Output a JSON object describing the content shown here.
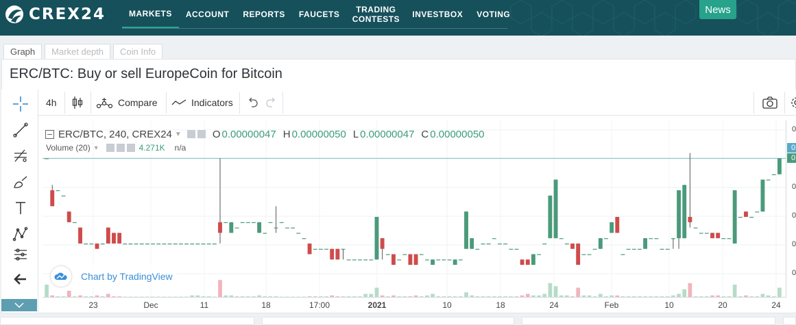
{
  "header": {
    "logo_text": "CREX24",
    "nav": [
      {
        "label": "MARKETS"
      },
      {
        "label": "ACCOUNT"
      },
      {
        "label": "REPORTS"
      },
      {
        "label": "FAUCETS"
      },
      {
        "label": "TRADING CONTESTS"
      },
      {
        "label": "INVESTBOX"
      },
      {
        "label": "VOTING"
      }
    ],
    "news_label": "News",
    "bg_color": "#16505b",
    "accent_color": "#27a28b"
  },
  "tabs": [
    {
      "label": "Graph"
    },
    {
      "label": "Market depth"
    },
    {
      "label": "Coin Info"
    }
  ],
  "page_title": "ERC/BTC: Buy or sell EuropeCoin for Bitcoin",
  "toolbar": {
    "interval": "4h",
    "compare_label": "Compare",
    "indicators_label": "Indicators"
  },
  "legend": {
    "symbol": "ERC/BTC, 240, CREX24",
    "open_key": "O",
    "open": "0.00000047",
    "high_key": "H",
    "high": "0.00000050",
    "low_key": "L",
    "low": "0.00000047",
    "close_key": "C",
    "close": "0.00000050",
    "volume_label": "Volume (20)",
    "volume_value": "4.271K",
    "volume_ma": "n/a"
  },
  "watermark": "Chart by TradingView",
  "x_ticks": [
    {
      "label": "23"
    },
    {
      "label": "Dec"
    },
    {
      "label": "11"
    },
    {
      "label": "18"
    },
    {
      "label": "17:00"
    },
    {
      "label": "2021",
      "bold": true
    },
    {
      "label": "10"
    },
    {
      "label": "18"
    },
    {
      "label": "24"
    },
    {
      "label": "Feb"
    },
    {
      "label": "10"
    },
    {
      "label": "20"
    },
    {
      "label": "24"
    }
  ],
  "y_ticks": [
    "0",
    "0",
    "0",
    "0",
    "0",
    "0",
    "0"
  ],
  "y_badges": [
    "0",
    "0"
  ],
  "chart_data": {
    "type": "candlestick",
    "title": "ERC/BTC, 240, CREX24",
    "up_color": "#4a9a7b",
    "down_color": "#cf4b4b",
    "volume_up_color": "#b5dcc7",
    "volume_down_color": "#f1b4bd",
    "candles": [
      {
        "o": 5e-07,
        "h": 5e-07,
        "l": 5e-07,
        "c": 5e-07,
        "v": 0.4
      },
      {
        "o": 4.4e-07,
        "h": 4.5e-07,
        "l": 4.1e-07,
        "c": 4.1e-07,
        "v": 0.05
      },
      {
        "o": 4.4e-07,
        "h": 4.4e-07,
        "l": 4.4e-07,
        "c": 4.4e-07,
        "v": 0.02
      },
      {
        "o": 4.3e-07,
        "h": 4.3e-07,
        "l": 4.3e-07,
        "c": 4.3e-07,
        "v": 0.02
      },
      {
        "o": 4e-07,
        "h": 4e-07,
        "l": 3.8e-07,
        "c": 3.8e-07,
        "v": 0.2
      },
      {
        "o": 3.8e-07,
        "h": 3.8e-07,
        "l": 3.8e-07,
        "c": 3.8e-07,
        "v": 0.02
      },
      {
        "o": 3.7e-07,
        "h": 3.7e-07,
        "l": 3.4e-07,
        "c": 3.4e-07,
        "v": 0.05
      },
      {
        "o": 3.4e-07,
        "h": 3.4e-07,
        "l": 3.4e-07,
        "c": 3.4e-07,
        "v": 0.02
      },
      {
        "o": 3.4e-07,
        "h": 3.4e-07,
        "l": 3.4e-07,
        "c": 3.4e-07,
        "v": 0.02
      },
      {
        "o": 3.4e-07,
        "h": 3.4e-07,
        "l": 3.3e-07,
        "c": 3.3e-07,
        "v": 0.05
      },
      {
        "o": 3.4e-07,
        "h": 3.4e-07,
        "l": 3.4e-07,
        "c": 3.4e-07,
        "v": 0.02
      },
      {
        "o": 3.7e-07,
        "h": 3.7e-07,
        "l": 3.4e-07,
        "c": 3.4e-07,
        "v": 0.1
      },
      {
        "o": 3.6e-07,
        "h": 3.6e-07,
        "l": 3.4e-07,
        "c": 3.4e-07,
        "v": 0.02
      },
      {
        "o": 3.6e-07,
        "h": 3.6e-07,
        "l": 3.4e-07,
        "c": 3.4e-07,
        "v": 0.02
      },
      {
        "o": 3.4e-07,
        "h": 3.4e-07,
        "l": 3.4e-07,
        "c": 3.4e-07,
        "v": 0.01
      },
      {
        "o": 3.4e-07,
        "h": 3.4e-07,
        "l": 3.4e-07,
        "c": 3.4e-07,
        "v": 0.01
      },
      {
        "o": 3.4e-07,
        "h": 3.4e-07,
        "l": 3.4e-07,
        "c": 3.4e-07,
        "v": 0.01
      },
      {
        "o": 3.4e-07,
        "h": 3.4e-07,
        "l": 3.4e-07,
        "c": 3.4e-07,
        "v": 0.01
      },
      {
        "o": 3.4e-07,
        "h": 3.4e-07,
        "l": 3.4e-07,
        "c": 3.4e-07,
        "v": 0.01
      },
      {
        "o": 3.4e-07,
        "h": 3.4e-07,
        "l": 3.4e-07,
        "c": 3.4e-07,
        "v": 0.01
      },
      {
        "o": 3.4e-07,
        "h": 3.4e-07,
        "l": 3.4e-07,
        "c": 3.4e-07,
        "v": 0.01
      },
      {
        "o": 3.4e-07,
        "h": 3.4e-07,
        "l": 3.4e-07,
        "c": 3.4e-07,
        "v": 0.01
      },
      {
        "o": 3.4e-07,
        "h": 3.4e-07,
        "l": 3.4e-07,
        "c": 3.4e-07,
        "v": 0.01
      },
      {
        "o": 3.4e-07,
        "h": 3.4e-07,
        "l": 3.4e-07,
        "c": 3.4e-07,
        "v": 0.01
      },
      {
        "o": 3.4e-07,
        "h": 3.4e-07,
        "l": 3.4e-07,
        "c": 3.4e-07,
        "v": 0.01
      },
      {
        "o": 3.4e-07,
        "h": 3.4e-07,
        "l": 3.4e-07,
        "c": 3.4e-07,
        "v": 0.01
      },
      {
        "o": 3.4e-07,
        "h": 3.4e-07,
        "l": 3.4e-07,
        "c": 3.4e-07,
        "v": 0.05
      },
      {
        "o": 3.4e-07,
        "h": 3.4e-07,
        "l": 3.4e-07,
        "c": 3.4e-07,
        "v": 0.05
      },
      {
        "o": 3.4e-07,
        "h": 3.4e-07,
        "l": 3.4e-07,
        "c": 3.4e-07,
        "v": 0.02
      },
      {
        "o": 3.4e-07,
        "h": 3.4e-07,
        "l": 3.4e-07,
        "c": 3.4e-07,
        "v": 0.02
      },
      {
        "o": 3.4e-07,
        "h": 3.4e-07,
        "l": 3.4e-07,
        "c": 3.4e-07,
        "v": 0.01
      },
      {
        "o": 3.8e-07,
        "h": 5e-07,
        "l": 3.4e-07,
        "c": 3.6e-07,
        "v": 0.55
      },
      {
        "o": 3.8e-07,
        "h": 3.8e-07,
        "l": 3.8e-07,
        "c": 3.8e-07,
        "v": 0.05
      },
      {
        "o": 3.6e-07,
        "h": 3.8e-07,
        "l": 3.6e-07,
        "c": 3.8e-07,
        "v": 0.05
      },
      {
        "o": 3.7e-07,
        "h": 3.7e-07,
        "l": 3.7e-07,
        "c": 3.7e-07,
        "v": 0.02
      },
      {
        "o": 3.8e-07,
        "h": 3.8e-07,
        "l": 3.8e-07,
        "c": 3.8e-07,
        "v": 0.02
      },
      {
        "o": 3.8e-07,
        "h": 3.8e-07,
        "l": 3.8e-07,
        "c": 3.8e-07,
        "v": 0.02
      },
      {
        "o": 3.8e-07,
        "h": 3.8e-07,
        "l": 3.8e-07,
        "c": 3.8e-07,
        "v": 0.02
      },
      {
        "o": 3.6e-07,
        "h": 3.8e-07,
        "l": 3.6e-07,
        "c": 3.8e-07,
        "v": 0.05
      },
      {
        "o": 3.6e-07,
        "h": 3.6e-07,
        "l": 3.6e-07,
        "c": 3.6e-07,
        "v": 0.02
      },
      {
        "o": 3.8e-07,
        "h": 3.8e-07,
        "l": 3.8e-07,
        "c": 3.8e-07,
        "v": 0.02
      },
      {
        "o": 3.7e-07,
        "h": 4.1e-07,
        "l": 3.6e-07,
        "c": 3.7e-07,
        "v": 0.02
      },
      {
        "o": 3.8e-07,
        "h": 3.8e-07,
        "l": 3.8e-07,
        "c": 3.8e-07,
        "v": 0.01
      },
      {
        "o": 3.7e-07,
        "h": 3.7e-07,
        "l": 3.7e-07,
        "c": 3.7e-07,
        "v": 0.01
      },
      {
        "o": 3.7e-07,
        "h": 3.7e-07,
        "l": 3.7e-07,
        "c": 3.7e-07,
        "v": 0.01
      },
      {
        "o": 3.6e-07,
        "h": 3.6e-07,
        "l": 3.6e-07,
        "c": 3.6e-07,
        "v": 0.01
      },
      {
        "o": 3.5e-07,
        "h": 3.5e-07,
        "l": 3.5e-07,
        "c": 3.5e-07,
        "v": 0.01
      },
      {
        "o": 3.4e-07,
        "h": 3.4e-07,
        "l": 3.2e-07,
        "c": 3.2e-07,
        "v": 0.02
      },
      {
        "o": 3.3e-07,
        "h": 3.3e-07,
        "l": 3.3e-07,
        "c": 3.3e-07,
        "v": 0.02
      },
      {
        "o": 3.3e-07,
        "h": 3.3e-07,
        "l": 3.3e-07,
        "c": 3.3e-07,
        "v": 0.02
      },
      {
        "o": 3.3e-07,
        "h": 3.3e-07,
        "l": 3.3e-07,
        "c": 3.3e-07,
        "v": 0.02
      },
      {
        "o": 3.3e-07,
        "h": 3.3e-07,
        "l": 3.1e-07,
        "c": 3.1e-07,
        "v": 0.05
      },
      {
        "o": 3.3e-07,
        "h": 3.3e-07,
        "l": 3.1e-07,
        "c": 3.1e-07,
        "v": 0.02
      },
      {
        "o": 3.3e-07,
        "h": 3.3e-07,
        "l": 3.1e-07,
        "c": 3.3e-07,
        "v": 0.02
      },
      {
        "o": 3.1e-07,
        "h": 3.1e-07,
        "l": 3.1e-07,
        "c": 3.1e-07,
        "v": 0.02
      },
      {
        "o": 3.1e-07,
        "h": 3.1e-07,
        "l": 3.1e-07,
        "c": 3.1e-07,
        "v": 0.02
      },
      {
        "o": 3.1e-07,
        "h": 3.1e-07,
        "l": 3.1e-07,
        "c": 3.1e-07,
        "v": 0.02
      },
      {
        "o": 3.1e-07,
        "h": 3.1e-07,
        "l": 3.1e-07,
        "c": 3.1e-07,
        "v": 0.1
      },
      {
        "o": 3.1e-07,
        "h": 3.1e-07,
        "l": 3.1e-07,
        "c": 3.1e-07,
        "v": 0.1
      },
      {
        "o": 3.1e-07,
        "h": 3.9e-07,
        "l": 3.1e-07,
        "c": 3.9e-07,
        "v": 0.3
      },
      {
        "o": 3.5e-07,
        "h": 3.5e-07,
        "l": 3.1e-07,
        "c": 3.3e-07,
        "v": 0.05
      },
      {
        "o": 3.2e-07,
        "h": 3.2e-07,
        "l": 3.2e-07,
        "c": 3.2e-07,
        "v": 0.02
      },
      {
        "o": 3.2e-07,
        "h": 3.2e-07,
        "l": 3e-07,
        "c": 3e-07,
        "v": 0.05
      },
      {
        "o": 3.1e-07,
        "h": 3.1e-07,
        "l": 3.1e-07,
        "c": 3.1e-07,
        "v": 0.02
      },
      {
        "o": 3.2e-07,
        "h": 3.2e-07,
        "l": 3.2e-07,
        "c": 3.2e-07,
        "v": 0.02
      },
      {
        "o": 3.2e-07,
        "h": 3.2e-07,
        "l": 3e-07,
        "c": 3e-07,
        "v": 0.02
      },
      {
        "o": 3.2e-07,
        "h": 3.2e-07,
        "l": 3e-07,
        "c": 3e-07,
        "v": 0.05
      },
      {
        "o": 3.2e-07,
        "h": 3.2e-07,
        "l": 3.2e-07,
        "c": 3.2e-07,
        "v": 0.02
      },
      {
        "o": 3.1e-07,
        "h": 3.1e-07,
        "l": 3.1e-07,
        "c": 3.1e-07,
        "v": 0.05
      },
      {
        "o": 3e-07,
        "h": 3.1e-07,
        "l": 3e-07,
        "c": 3.1e-07,
        "v": 0.1
      },
      {
        "o": 3.1e-07,
        "h": 3.1e-07,
        "l": 3.1e-07,
        "c": 3.1e-07,
        "v": 0.02
      },
      {
        "o": 3.1e-07,
        "h": 3.1e-07,
        "l": 3.1e-07,
        "c": 3.1e-07,
        "v": 0.02
      },
      {
        "o": 3.1e-07,
        "h": 3.1e-07,
        "l": 3.1e-07,
        "c": 3.1e-07,
        "v": 0.02
      },
      {
        "o": 3e-07,
        "h": 3.1e-07,
        "l": 3e-07,
        "c": 3.1e-07,
        "v": 0.02
      },
      {
        "o": 3.1e-07,
        "h": 3.1e-07,
        "l": 3.1e-07,
        "c": 3.1e-07,
        "v": 0.02
      },
      {
        "o": 3.3e-07,
        "h": 4e-07,
        "l": 3.3e-07,
        "c": 4e-07,
        "v": 0.15
      },
      {
        "o": 3.3e-07,
        "h": 3.5e-07,
        "l": 3.3e-07,
        "c": 3.5e-07,
        "v": 0.05
      },
      {
        "o": 3.3e-07,
        "h": 3.3e-07,
        "l": 3.3e-07,
        "c": 3.3e-07,
        "v": 0.02
      },
      {
        "o": 3.4e-07,
        "h": 3.4e-07,
        "l": 3.4e-07,
        "c": 3.4e-07,
        "v": 0.02
      },
      {
        "o": 3.4e-07,
        "h": 3.4e-07,
        "l": 3.4e-07,
        "c": 3.4e-07,
        "v": 0.02
      },
      {
        "o": 3.5e-07,
        "h": 3.5e-07,
        "l": 3.5e-07,
        "c": 3.5e-07,
        "v": 0.02
      },
      {
        "o": 3.4e-07,
        "h": 3.4e-07,
        "l": 3.4e-07,
        "c": 3.4e-07,
        "v": 0.02
      },
      {
        "o": 3.4e-07,
        "h": 3.4e-07,
        "l": 3.4e-07,
        "c": 3.4e-07,
        "v": 0.02
      },
      {
        "o": 3.3e-07,
        "h": 3.3e-07,
        "l": 3.3e-07,
        "c": 3.3e-07,
        "v": 0.02
      },
      {
        "o": 3.3e-07,
        "h": 3.3e-07,
        "l": 3.3e-07,
        "c": 3.3e-07,
        "v": 0.02
      },
      {
        "o": 3.1e-07,
        "h": 3.1e-07,
        "l": 3e-07,
        "c": 3e-07,
        "v": 0.05
      },
      {
        "o": 3.1e-07,
        "h": 3.1e-07,
        "l": 3e-07,
        "c": 3e-07,
        "v": 0.1
      },
      {
        "o": 3e-07,
        "h": 3.2e-07,
        "l": 3e-07,
        "c": 3.2e-07,
        "v": 0.05
      },
      {
        "o": 3.2e-07,
        "h": 3.2e-07,
        "l": 3.2e-07,
        "c": 3.2e-07,
        "v": 0.05
      },
      {
        "o": 3.4e-07,
        "h": 3.4e-07,
        "l": 3.4e-07,
        "c": 3.4e-07,
        "v": 0.1
      },
      {
        "o": 3.5e-07,
        "h": 4.3e-07,
        "l": 3.5e-07,
        "c": 4.3e-07,
        "v": 0.45
      },
      {
        "o": 3.5e-07,
        "h": 4.6e-07,
        "l": 3.5e-07,
        "c": 4.6e-07,
        "v": 0.35
      },
      {
        "o": 3.5e-07,
        "h": 3.5e-07,
        "l": 3.5e-07,
        "c": 3.5e-07,
        "v": 0.05
      },
      {
        "o": 3.4e-07,
        "h": 3.4e-07,
        "l": 3.4e-07,
        "c": 3.4e-07,
        "v": 0.05
      },
      {
        "o": 3.4e-07,
        "h": 3.4e-07,
        "l": 3.3e-07,
        "c": 3.3e-07,
        "v": 0.02
      },
      {
        "o": 3.4e-07,
        "h": 3.4e-07,
        "l": 3e-07,
        "c": 3e-07,
        "v": 0.3
      },
      {
        "o": 3.2e-07,
        "h": 3.2e-07,
        "l": 3.2e-07,
        "c": 3.2e-07,
        "v": 0.05
      },
      {
        "o": 3.2e-07,
        "h": 3.2e-07,
        "l": 3.2e-07,
        "c": 3.2e-07,
        "v": 0.05
      },
      {
        "o": 3.3e-07,
        "h": 3.3e-07,
        "l": 3.3e-07,
        "c": 3.3e-07,
        "v": 0.02
      },
      {
        "o": 3.3e-07,
        "h": 3.5e-07,
        "l": 3.3e-07,
        "c": 3.5e-07,
        "v": 0.1
      },
      {
        "o": 3.5e-07,
        "h": 3.5e-07,
        "l": 3.5e-07,
        "c": 3.5e-07,
        "v": 0.02
      },
      {
        "o": 3.6e-07,
        "h": 3.8e-07,
        "l": 3.6e-07,
        "c": 3.8e-07,
        "v": 0.05
      },
      {
        "o": 3.9e-07,
        "h": 3.9e-07,
        "l": 3.6e-07,
        "c": 3.6e-07,
        "v": 0.05
      },
      {
        "o": 3.2e-07,
        "h": 3.2e-07,
        "l": 3.2e-07,
        "c": 3.2e-07,
        "v": 0.02
      },
      {
        "o": 3.3e-07,
        "h": 3.3e-07,
        "l": 3.3e-07,
        "c": 3.3e-07,
        "v": 0.02
      },
      {
        "o": 3.3e-07,
        "h": 3.3e-07,
        "l": 3.3e-07,
        "c": 3.3e-07,
        "v": 0.02
      },
      {
        "o": 3.3e-07,
        "h": 3.3e-07,
        "l": 3.3e-07,
        "c": 3.3e-07,
        "v": 0.02
      },
      {
        "o": 3.3e-07,
        "h": 3.5e-07,
        "l": 3.3e-07,
        "c": 3.5e-07,
        "v": 0.02
      },
      {
        "o": 3.5e-07,
        "h": 3.5e-07,
        "l": 3.5e-07,
        "c": 3.5e-07,
        "v": 0.02
      },
      {
        "o": 3.5e-07,
        "h": 3.5e-07,
        "l": 3.5e-07,
        "c": 3.5e-07,
        "v": 0.02
      },
      {
        "o": 3.3e-07,
        "h": 3.3e-07,
        "l": 3.3e-07,
        "c": 3.3e-07,
        "v": 0.02
      },
      {
        "o": 3.3e-07,
        "h": 3.3e-07,
        "l": 3.3e-07,
        "c": 3.3e-07,
        "v": 0.02
      },
      {
        "o": 3.5e-07,
        "h": 3.5e-07,
        "l": 3.3e-07,
        "c": 3.5e-07,
        "v": 0.05
      },
      {
        "o": 3.5e-07,
        "h": 4.4e-07,
        "l": 3.3e-07,
        "c": 4.4e-07,
        "v": 0.1
      },
      {
        "o": 3.5e-07,
        "h": 4.5e-07,
        "l": 3.5e-07,
        "c": 4.5e-07,
        "v": 0.25
      },
      {
        "o": 3.9e-07,
        "h": 5.1e-07,
        "l": 3.7e-07,
        "c": 3.8e-07,
        "v": 0.45
      },
      {
        "o": 3.7e-07,
        "h": 3.7e-07,
        "l": 3.7e-07,
        "c": 3.7e-07,
        "v": 0.02
      },
      {
        "o": 3.6e-07,
        "h": 3.6e-07,
        "l": 3.6e-07,
        "c": 3.6e-07,
        "v": 0.02
      },
      {
        "o": 3.6e-07,
        "h": 3.6e-07,
        "l": 3.6e-07,
        "c": 3.6e-07,
        "v": 0.02
      },
      {
        "o": 3.6e-07,
        "h": 3.6e-07,
        "l": 3.5e-07,
        "c": 3.5e-07,
        "v": 0.05
      },
      {
        "o": 3.6e-07,
        "h": 3.6e-07,
        "l": 3.5e-07,
        "c": 3.5e-07,
        "v": 0.05
      },
      {
        "o": 3.5e-07,
        "h": 3.5e-07,
        "l": 3.5e-07,
        "c": 3.5e-07,
        "v": 0.02
      },
      {
        "o": 3.5e-07,
        "h": 3.5e-07,
        "l": 3.5e-07,
        "c": 3.5e-07,
        "v": 0.02
      },
      {
        "o": 3.4e-07,
        "h": 4.4e-07,
        "l": 3.4e-07,
        "c": 4.4e-07,
        "v": 0.4
      },
      {
        "o": 3.9e-07,
        "h": 3.9e-07,
        "l": 3.9e-07,
        "c": 3.9e-07,
        "v": 0.02
      },
      {
        "o": 4e-07,
        "h": 4e-07,
        "l": 3.9e-07,
        "c": 3.9e-07,
        "v": 0.05
      },
      {
        "o": 3.9e-07,
        "h": 3.9e-07,
        "l": 3.9e-07,
        "c": 3.9e-07,
        "v": 0.02
      },
      {
        "o": 4e-07,
        "h": 4e-07,
        "l": 4e-07,
        "c": 4e-07,
        "v": 0.02
      },
      {
        "o": 4e-07,
        "h": 4.6e-07,
        "l": 4e-07,
        "c": 4.6e-07,
        "v": 0.1
      },
      {
        "o": 4.6e-07,
        "h": 4.6e-07,
        "l": 4.6e-07,
        "c": 4.6e-07,
        "v": 0.05
      },
      {
        "o": 4.7e-07,
        "h": 4.7e-07,
        "l": 4.7e-07,
        "c": 4.7e-07,
        "v": 0.02
      },
      {
        "o": 4.7e-07,
        "h": 5e-07,
        "l": 4.7e-07,
        "c": 5e-07,
        "v": 0.3
      }
    ]
  }
}
